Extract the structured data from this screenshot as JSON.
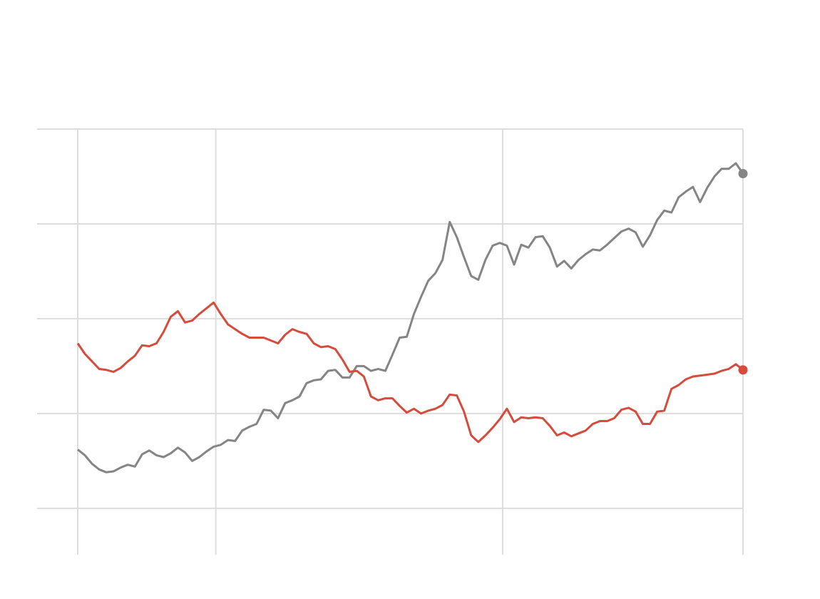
{
  "chart_data": {
    "type": "line",
    "x": [
      0,
      1,
      2,
      3,
      4,
      5,
      6,
      7,
      8,
      9,
      10,
      11,
      12,
      13,
      14,
      15,
      16,
      17,
      18,
      19,
      20,
      21,
      22,
      23,
      24,
      25,
      26,
      27,
      28,
      29,
      30,
      31,
      32,
      33,
      34,
      35,
      36,
      37,
      38,
      39,
      40,
      41,
      42,
      43,
      44,
      45,
      46,
      47,
      48,
      49,
      50,
      51,
      52,
      53,
      54,
      55,
      56,
      57,
      58,
      59,
      60,
      61,
      62,
      63,
      64,
      65,
      66,
      67,
      68,
      69,
      70,
      71,
      72,
      73,
      74,
      75,
      76,
      77,
      78,
      79,
      80,
      81,
      82,
      83,
      84,
      85,
      86,
      87,
      88,
      89,
      90,
      91,
      92,
      93
    ],
    "xlim": [
      0,
      93
    ],
    "xticks": [
      0,
      19.3,
      59.4,
      93
    ],
    "ylim": [
      -0.49,
      4
    ],
    "yticks": [
      0,
      1,
      2,
      3,
      4
    ],
    "grid": true,
    "series": [
      {
        "color": "#858585",
        "values": [
          0.62,
          0.56,
          0.47,
          0.41,
          0.38,
          0.39,
          0.43,
          0.46,
          0.44,
          0.57,
          0.61,
          0.56,
          0.54,
          0.58,
          0.64,
          0.59,
          0.5,
          0.54,
          0.6,
          0.65,
          0.67,
          0.72,
          0.71,
          0.82,
          0.86,
          0.89,
          1.04,
          1.03,
          0.95,
          1.11,
          1.14,
          1.18,
          1.32,
          1.35,
          1.36,
          1.45,
          1.46,
          1.38,
          1.38,
          1.5,
          1.5,
          1.45,
          1.47,
          1.45,
          1.62,
          1.8,
          1.81,
          2.05,
          2.23,
          2.4,
          2.48,
          2.62,
          3.02,
          2.86,
          2.65,
          2.45,
          2.41,
          2.62,
          2.77,
          2.8,
          2.77,
          2.57,
          2.78,
          2.75,
          2.86,
          2.87,
          2.75,
          2.55,
          2.61,
          2.53,
          2.62,
          2.68,
          2.73,
          2.72,
          2.78,
          2.85,
          2.92,
          2.95,
          2.91,
          2.76,
          2.88,
          3.04,
          3.14,
          3.12,
          3.28,
          3.34,
          3.39,
          3.23,
          3.38,
          3.5,
          3.58,
          3.58,
          3.64,
          3.53
        ]
      },
      {
        "color": "#d64b3c",
        "values": [
          1.74,
          1.63,
          1.55,
          1.47,
          1.46,
          1.44,
          1.48,
          1.55,
          1.61,
          1.72,
          1.71,
          1.74,
          1.86,
          2.02,
          2.08,
          1.96,
          1.98,
          2.05,
          2.11,
          2.17,
          2.05,
          1.94,
          1.89,
          1.84,
          1.8,
          1.8,
          1.8,
          1.77,
          1.74,
          1.83,
          1.89,
          1.86,
          1.84,
          1.74,
          1.7,
          1.71,
          1.68,
          1.57,
          1.44,
          1.45,
          1.39,
          1.18,
          1.14,
          1.16,
          1.16,
          1.08,
          1.01,
          1.05,
          1.0,
          1.03,
          1.05,
          1.09,
          1.2,
          1.19,
          1.02,
          0.77,
          0.7,
          0.77,
          0.85,
          0.94,
          1.05,
          0.91,
          0.96,
          0.95,
          0.96,
          0.95,
          0.87,
          0.77,
          0.8,
          0.76,
          0.79,
          0.82,
          0.89,
          0.92,
          0.92,
          0.95,
          1.04,
          1.06,
          1.02,
          0.89,
          0.89,
          1.02,
          1.03,
          1.26,
          1.3,
          1.36,
          1.39,
          1.4,
          1.41,
          1.42,
          1.45,
          1.47,
          1.52,
          1.46
        ]
      }
    ]
  }
}
